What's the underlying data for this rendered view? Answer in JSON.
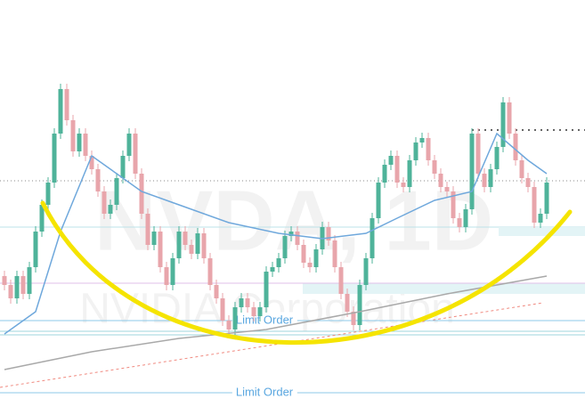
{
  "chart_data": {
    "type": "candlestick",
    "watermark": "NVDA, 1D",
    "watermark_subtitle": "NVIDIA Corporation",
    "ylim": [
      0,
      466
    ],
    "up_color": "#4fb39a",
    "down_color": "#e8a5ab",
    "open": [
      156,
      146,
      131,
      156,
      136,
      166,
      206,
      236,
      261,
      316,
      366,
      331,
      296,
      316,
      291,
      276,
      251,
      226,
      236,
      266,
      291,
      316,
      271,
      226,
      191,
      206,
      166,
      146,
      176,
      206,
      191,
      181,
      204,
      176,
      146,
      131,
      106,
      96,
      121,
      131,
      121,
      111,
      121,
      161,
      166,
      176,
      201,
      206,
      191,
      171,
      166,
      186,
      211,
      196,
      166,
      136,
      116,
      101,
      146,
      176,
      221,
      261,
      281,
      291,
      261,
      256,
      286,
      306,
      311,
      286,
      271,
      256,
      251,
      221,
      211,
      231,
      316,
      271,
      256,
      276,
      301,
      351,
      316,
      286,
      266,
      256,
      216,
      226
    ],
    "high": [
      162,
      152,
      162,
      162,
      172,
      212,
      242,
      267,
      322,
      372,
      372,
      337,
      322,
      322,
      297,
      282,
      257,
      242,
      272,
      297,
      322,
      322,
      277,
      232,
      212,
      212,
      172,
      182,
      212,
      212,
      197,
      210,
      210,
      182,
      152,
      137,
      112,
      127,
      137,
      137,
      127,
      127,
      167,
      172,
      182,
      207,
      212,
      212,
      197,
      177,
      192,
      217,
      217,
      202,
      172,
      142,
      122,
      152,
      182,
      227,
      267,
      287,
      297,
      297,
      267,
      292,
      312,
      317,
      317,
      292,
      277,
      262,
      257,
      227,
      237,
      322,
      322,
      277,
      282,
      307,
      357,
      357,
      322,
      292,
      272,
      262,
      232,
      267
    ],
    "low": [
      140,
      125,
      125,
      130,
      130,
      160,
      200,
      230,
      255,
      310,
      325,
      290,
      290,
      285,
      270,
      245,
      220,
      220,
      230,
      260,
      285,
      265,
      220,
      185,
      185,
      160,
      140,
      140,
      170,
      185,
      175,
      175,
      170,
      140,
      125,
      100,
      90,
      90,
      115,
      115,
      105,
      105,
      115,
      155,
      160,
      170,
      195,
      185,
      165,
      160,
      160,
      180,
      190,
      160,
      130,
      110,
      95,
      95,
      140,
      170,
      215,
      255,
      275,
      255,
      250,
      250,
      280,
      300,
      280,
      265,
      250,
      245,
      215,
      205,
      205,
      225,
      265,
      250,
      250,
      270,
      295,
      310,
      280,
      260,
      250,
      210,
      210,
      220
    ],
    "close": [
      146,
      131,
      156,
      136,
      166,
      206,
      236,
      261,
      316,
      366,
      331,
      296,
      316,
      291,
      276,
      251,
      226,
      236,
      266,
      291,
      316,
      271,
      226,
      191,
      206,
      166,
      146,
      176,
      206,
      191,
      181,
      204,
      176,
      146,
      131,
      106,
      96,
      121,
      131,
      121,
      111,
      121,
      161,
      166,
      176,
      201,
      206,
      191,
      171,
      166,
      186,
      211,
      196,
      166,
      136,
      116,
      101,
      146,
      176,
      221,
      261,
      281,
      291,
      261,
      256,
      286,
      306,
      311,
      286,
      271,
      256,
      251,
      221,
      211,
      231,
      316,
      271,
      256,
      276,
      301,
      351,
      316,
      286,
      266,
      256,
      216,
      226,
      261
    ],
    "lines": [
      {
        "color": "#6fa8dc",
        "x": [
          0,
          5,
          9,
          14,
          18,
          22,
          28,
          36,
          44,
          51,
          58,
          63,
          69,
          75,
          79,
          84,
          87
        ],
        "values": [
          91,
          116,
          206,
          291,
          271,
          251,
          236,
          216,
          204,
          198,
          204,
          221,
          241,
          251,
          316,
          286,
          271
        ]
      },
      {
        "color": "#a9a9a9",
        "x": [
          0,
          14,
          28,
          42,
          57,
          71,
          87
        ],
        "values": [
          51,
          71,
          86,
          96,
          116,
          136,
          156
        ]
      }
    ],
    "limit_orders": [
      {
        "label": "Limit Order",
        "price": 106
      },
      {
        "label": "Limit Order",
        "price": 25
      }
    ]
  }
}
